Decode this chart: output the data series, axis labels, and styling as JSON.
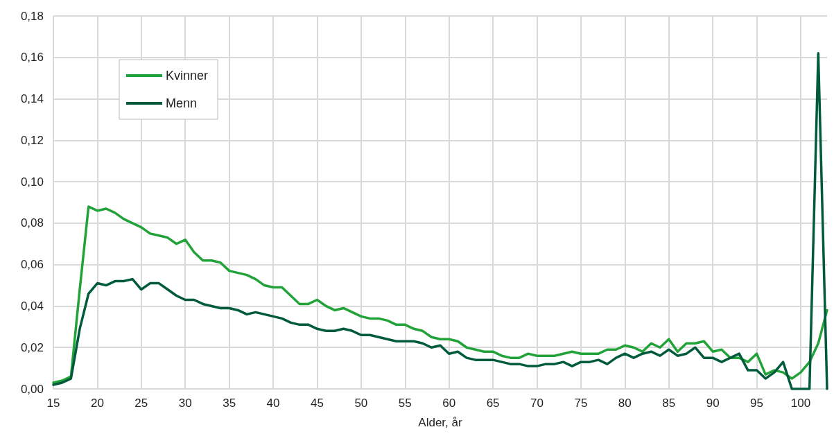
{
  "chart_data": {
    "type": "line",
    "xlabel": "Alder, år",
    "x": [
      15,
      16,
      17,
      18,
      19,
      20,
      21,
      22,
      23,
      24,
      25,
      26,
      27,
      28,
      29,
      30,
      31,
      32,
      33,
      34,
      35,
      36,
      37,
      38,
      39,
      40,
      41,
      42,
      43,
      44,
      45,
      46,
      47,
      48,
      49,
      50,
      51,
      52,
      53,
      54,
      55,
      56,
      57,
      58,
      59,
      60,
      61,
      62,
      63,
      64,
      65,
      66,
      67,
      68,
      69,
      70,
      71,
      72,
      73,
      74,
      75,
      76,
      77,
      78,
      79,
      80,
      81,
      82,
      83,
      84,
      85,
      86,
      87,
      88,
      89,
      90,
      91,
      92,
      93,
      94,
      95,
      96,
      97,
      98,
      99,
      100,
      101,
      102,
      103
    ],
    "series": [
      {
        "name": "Kvinner",
        "color": "#22a33a",
        "values": [
          0.003,
          0.004,
          0.006,
          0.048,
          0.088,
          0.086,
          0.087,
          0.085,
          0.082,
          0.08,
          0.078,
          0.075,
          0.074,
          0.073,
          0.07,
          0.072,
          0.066,
          0.062,
          0.062,
          0.061,
          0.057,
          0.056,
          0.055,
          0.053,
          0.05,
          0.049,
          0.049,
          0.045,
          0.041,
          0.041,
          0.043,
          0.04,
          0.038,
          0.039,
          0.037,
          0.035,
          0.034,
          0.034,
          0.033,
          0.031,
          0.031,
          0.029,
          0.028,
          0.025,
          0.024,
          0.024,
          0.023,
          0.02,
          0.019,
          0.018,
          0.018,
          0.016,
          0.015,
          0.015,
          0.017,
          0.016,
          0.016,
          0.016,
          0.017,
          0.018,
          0.017,
          0.017,
          0.017,
          0.019,
          0.019,
          0.021,
          0.02,
          0.018,
          0.022,
          0.02,
          0.024,
          0.018,
          0.022,
          0.022,
          0.023,
          0.018,
          0.019,
          0.015,
          0.015,
          0.013,
          0.017,
          0.007,
          0.009,
          0.008,
          0.005,
          0.008,
          0.013,
          0.022,
          0.038
        ]
      },
      {
        "name": "Menn",
        "color": "#005a3c",
        "values": [
          0.002,
          0.003,
          0.005,
          0.029,
          0.046,
          0.051,
          0.05,
          0.052,
          0.052,
          0.053,
          0.048,
          0.051,
          0.051,
          0.048,
          0.045,
          0.043,
          0.043,
          0.041,
          0.04,
          0.039,
          0.039,
          0.038,
          0.036,
          0.037,
          0.036,
          0.035,
          0.034,
          0.032,
          0.031,
          0.031,
          0.029,
          0.028,
          0.028,
          0.029,
          0.028,
          0.026,
          0.026,
          0.025,
          0.024,
          0.023,
          0.023,
          0.023,
          0.022,
          0.02,
          0.021,
          0.017,
          0.018,
          0.015,
          0.014,
          0.014,
          0.014,
          0.013,
          0.012,
          0.012,
          0.011,
          0.011,
          0.012,
          0.012,
          0.013,
          0.011,
          0.013,
          0.013,
          0.014,
          0.012,
          0.015,
          0.017,
          0.015,
          0.017,
          0.018,
          0.016,
          0.019,
          0.016,
          0.017,
          0.02,
          0.015,
          0.015,
          0.013,
          0.015,
          0.017,
          0.009,
          0.009,
          0.005,
          0.008,
          0.013,
          0,
          0,
          0,
          0.162,
          0
        ]
      }
    ],
    "xlim": [
      15,
      103
    ],
    "xticks": [
      15,
      20,
      25,
      30,
      35,
      40,
      45,
      50,
      55,
      60,
      65,
      70,
      75,
      80,
      85,
      90,
      95,
      100
    ],
    "ylim": [
      0,
      0.18
    ],
    "yticks": [
      {
        "value": 0,
        "label": "0,00"
      },
      {
        "value": 0.02,
        "label": "0,02"
      },
      {
        "value": 0.04,
        "label": "0,04"
      },
      {
        "value": 0.06,
        "label": "0,06"
      },
      {
        "value": 0.08,
        "label": "0,08"
      },
      {
        "value": 0.1,
        "label": "0,10"
      },
      {
        "value": 0.12,
        "label": "0,12"
      },
      {
        "value": 0.14,
        "label": "0,14"
      },
      {
        "value": 0.16,
        "label": "0,16"
      },
      {
        "value": 0.18,
        "label": "0,18"
      }
    ],
    "grid": true,
    "legend": "top left",
    "marker": "none",
    "line_style": "solid"
  }
}
